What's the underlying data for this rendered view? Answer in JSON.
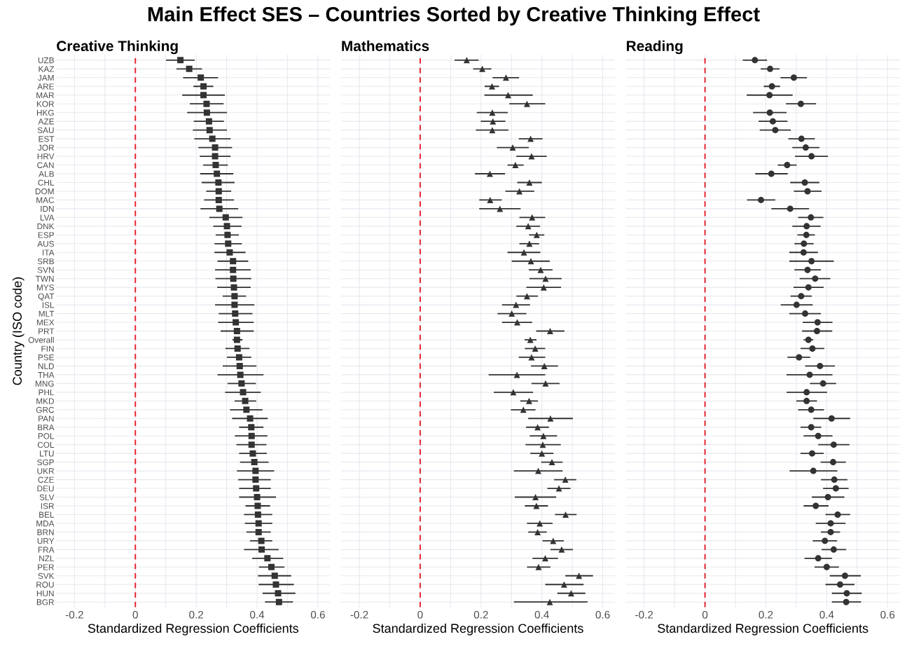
{
  "chart_data": [
    {
      "type": "scatter",
      "orientation": "horizontal",
      "title": "Main Effect SES – Countries Sorted by Creative Thinking Effect",
      "subtitle": "Creative Thinking",
      "xlabel": "Standardized Regression Coefficients",
      "ylabel": "Country (ISO code)",
      "marker": "square",
      "grid": true,
      "xlim": [
        -0.26,
        0.64
      ],
      "xticks": [
        -0.2,
        {
          "value": -0.1,
          "label": null
        },
        0,
        {
          "value": 0.1,
          "label": null
        },
        0.2,
        {
          "value": 0.3,
          "label": null
        },
        0.4,
        {
          "value": 0.5,
          "label": null
        },
        0.6
      ],
      "ref_lines": [
        {
          "axis": "x",
          "value": 0,
          "color": "#e8202a",
          "line_style": "dashed"
        }
      ],
      "categories": [
        "UZB",
        "KAZ",
        "JAM",
        "ARE",
        "MAR",
        "KOR",
        "HKG",
        "AZE",
        "SAU",
        "EST",
        "JOR",
        "HRV",
        "CAN",
        "ALB",
        "CHL",
        "DOM",
        "MAC",
        "IDN",
        "LVA",
        "DNK",
        "ESP",
        "AUS",
        "ITA",
        "SRB",
        "SVN",
        "TWN",
        "MYS",
        "QAT",
        "ISL",
        "MLT",
        "MEX",
        "PRT",
        "Overall",
        "FIN",
        "PSE",
        "NLD",
        "THA",
        "MNG",
        "PHL",
        "MKD",
        "GRC",
        "PAN",
        "BRA",
        "POL",
        "COL",
        "LTU",
        "SGP",
        "UKR",
        "CZE",
        "DEU",
        "SLV",
        "ISR",
        "BEL",
        "MDA",
        "BRN",
        "URY",
        "FRA",
        "NZL",
        "PER",
        "SVK",
        "ROU",
        "HUN",
        "BGR"
      ],
      "series": [
        {
          "color": "#333333",
          "values": [
            0.148,
            0.177,
            0.215,
            0.224,
            0.224,
            0.234,
            0.235,
            0.242,
            0.244,
            0.253,
            0.262,
            0.262,
            0.264,
            0.268,
            0.273,
            0.274,
            0.274,
            0.276,
            0.297,
            0.301,
            0.303,
            0.305,
            0.31,
            0.321,
            0.321,
            0.322,
            0.324,
            0.326,
            0.326,
            0.328,
            0.33,
            0.334,
            0.334,
            0.336,
            0.341,
            0.343,
            0.345,
            0.349,
            0.354,
            0.361,
            0.365,
            0.377,
            0.381,
            0.382,
            0.382,
            0.386,
            0.391,
            0.395,
            0.395,
            0.397,
            0.4,
            0.402,
            0.403,
            0.405,
            0.405,
            0.414,
            0.415,
            0.434,
            0.447,
            0.458,
            0.462,
            0.469,
            0.472
          ],
          "errors": [
            [
              0.101,
              0.195
            ],
            [
              0.135,
              0.219
            ],
            [
              0.157,
              0.272
            ],
            [
              0.191,
              0.256
            ],
            [
              0.154,
              0.294
            ],
            [
              0.179,
              0.29
            ],
            [
              0.17,
              0.301
            ],
            [
              0.192,
              0.291
            ],
            [
              0.189,
              0.301
            ],
            [
              0.194,
              0.313
            ],
            [
              0.207,
              0.318
            ],
            [
              0.212,
              0.313
            ],
            [
              0.223,
              0.304
            ],
            [
              0.213,
              0.322
            ],
            [
              0.218,
              0.326
            ],
            [
              0.233,
              0.315
            ],
            [
              0.226,
              0.324
            ],
            [
              0.214,
              0.338
            ],
            [
              0.243,
              0.352
            ],
            [
              0.256,
              0.349
            ],
            [
              0.264,
              0.34
            ],
            [
              0.26,
              0.35
            ],
            [
              0.26,
              0.362
            ],
            [
              0.27,
              0.371
            ],
            [
              0.262,
              0.379
            ],
            [
              0.263,
              0.381
            ],
            [
              0.269,
              0.379
            ],
            [
              0.287,
              0.364
            ],
            [
              0.262,
              0.391
            ],
            [
              0.274,
              0.385
            ],
            [
              0.272,
              0.389
            ],
            [
              0.28,
              0.389
            ],
            [
              0.319,
              0.352
            ],
            [
              0.296,
              0.375
            ],
            [
              0.301,
              0.381
            ],
            [
              0.287,
              0.398
            ],
            [
              0.27,
              0.421
            ],
            [
              0.303,
              0.396
            ],
            [
              0.295,
              0.412
            ],
            [
              0.326,
              0.397
            ],
            [
              0.311,
              0.418
            ],
            [
              0.318,
              0.435
            ],
            [
              0.341,
              0.421
            ],
            [
              0.327,
              0.434
            ],
            [
              0.332,
              0.431
            ],
            [
              0.341,
              0.432
            ],
            [
              0.344,
              0.438
            ],
            [
              0.334,
              0.456
            ],
            [
              0.338,
              0.445
            ],
            [
              0.341,
              0.445
            ],
            [
              0.341,
              0.462
            ],
            [
              0.362,
              0.443
            ],
            [
              0.357,
              0.45
            ],
            [
              0.36,
              0.45
            ],
            [
              0.365,
              0.445
            ],
            [
              0.377,
              0.45
            ],
            [
              0.357,
              0.471
            ],
            [
              0.384,
              0.486
            ],
            [
              0.406,
              0.49
            ],
            [
              0.403,
              0.512
            ],
            [
              0.405,
              0.521
            ],
            [
              0.418,
              0.526
            ],
            [
              0.426,
              0.518
            ]
          ]
        }
      ]
    },
    {
      "type": "scatter",
      "orientation": "horizontal",
      "subtitle": "Mathematics",
      "xlabel": "Standardized Regression Coefficients",
      "marker": "triangle",
      "grid": true,
      "xlim": [
        -0.26,
        0.64
      ],
      "xticks": [
        -0.2,
        {
          "value": -0.1,
          "label": null
        },
        0,
        {
          "value": 0.1,
          "label": null
        },
        0.2,
        {
          "value": 0.3,
          "label": null
        },
        0.4,
        {
          "value": 0.5,
          "label": null
        },
        0.6
      ],
      "ref_lines": [
        {
          "axis": "x",
          "value": 0,
          "color": "#e8202a",
          "line_style": "dashed"
        }
      ],
      "categories": [
        null,
        null,
        null,
        null,
        null,
        null,
        null,
        null,
        null,
        null,
        null,
        null,
        null,
        null,
        null,
        null,
        null,
        null,
        null,
        null,
        null,
        null,
        null,
        null,
        null,
        null,
        null,
        null,
        null,
        null,
        null,
        null,
        null,
        null,
        null,
        null,
        null,
        null,
        null,
        null,
        null,
        null,
        null,
        null,
        null,
        null,
        null,
        null,
        null,
        null,
        null,
        null,
        null,
        null,
        null,
        null,
        null,
        null,
        null,
        null,
        null,
        null,
        null
      ],
      "series": [
        {
          "color": "#333333",
          "values": [
            0.153,
            0.204,
            0.282,
            0.236,
            0.289,
            0.351,
            0.237,
            0.239,
            0.237,
            0.363,
            0.304,
            0.366,
            0.313,
            0.229,
            0.359,
            0.326,
            0.23,
            0.262,
            0.368,
            0.355,
            0.383,
            0.359,
            0.341,
            0.364,
            0.396,
            0.412,
            0.406,
            0.351,
            0.315,
            0.301,
            0.319,
            0.427,
            0.362,
            0.378,
            0.366,
            0.408,
            0.318,
            0.412,
            0.306,
            0.358,
            0.339,
            0.428,
            0.386,
            0.405,
            0.403,
            0.4,
            0.433,
            0.388,
            0.477,
            0.456,
            0.379,
            0.382,
            0.478,
            0.393,
            0.386,
            0.437,
            0.465,
            0.411,
            0.389,
            0.522,
            0.473,
            0.496,
            0.426
          ],
          "errors": [
            [
              0.113,
              0.192
            ],
            [
              0.174,
              0.234
            ],
            [
              0.238,
              0.325
            ],
            [
              0.212,
              0.259
            ],
            [
              0.211,
              0.37
            ],
            [
              0.293,
              0.411
            ],
            [
              0.186,
              0.288
            ],
            [
              0.199,
              0.28
            ],
            [
              0.183,
              0.29
            ],
            [
              0.324,
              0.402
            ],
            [
              0.252,
              0.357
            ],
            [
              0.316,
              0.416
            ],
            [
              0.287,
              0.34
            ],
            [
              0.18,
              0.279
            ],
            [
              0.319,
              0.4
            ],
            [
              0.28,
              0.375
            ],
            [
              0.194,
              0.268
            ],
            [
              0.194,
              0.33
            ],
            [
              0.326,
              0.411
            ],
            [
              0.316,
              0.394
            ],
            [
              0.358,
              0.408
            ],
            [
              0.326,
              0.391
            ],
            [
              0.287,
              0.395
            ],
            [
              0.301,
              0.426
            ],
            [
              0.357,
              0.435
            ],
            [
              0.359,
              0.465
            ],
            [
              0.349,
              0.463
            ],
            [
              0.316,
              0.387
            ],
            [
              0.269,
              0.361
            ],
            [
              0.254,
              0.349
            ],
            [
              0.269,
              0.368
            ],
            [
              0.381,
              0.474
            ],
            [
              0.343,
              0.382
            ],
            [
              0.344,
              0.411
            ],
            [
              0.324,
              0.411
            ],
            [
              0.364,
              0.453
            ],
            [
              0.225,
              0.411
            ],
            [
              0.366,
              0.458
            ],
            [
              0.242,
              0.371
            ],
            [
              0.329,
              0.387
            ],
            [
              0.298,
              0.379
            ],
            [
              0.355,
              0.502
            ],
            [
              0.348,
              0.423
            ],
            [
              0.36,
              0.45
            ],
            [
              0.346,
              0.462
            ],
            [
              0.362,
              0.438
            ],
            [
              0.398,
              0.468
            ],
            [
              0.308,
              0.468
            ],
            [
              0.44,
              0.513
            ],
            [
              0.418,
              0.494
            ],
            [
              0.311,
              0.447
            ],
            [
              0.344,
              0.42
            ],
            [
              0.443,
              0.514
            ],
            [
              0.351,
              0.435
            ],
            [
              0.355,
              0.416
            ],
            [
              0.402,
              0.472
            ],
            [
              0.428,
              0.502
            ],
            [
              0.369,
              0.453
            ],
            [
              0.351,
              0.428
            ],
            [
              0.477,
              0.568
            ],
            [
              0.411,
              0.537
            ],
            [
              0.451,
              0.543
            ],
            [
              0.308,
              0.55
            ]
          ]
        }
      ]
    },
    {
      "type": "scatter",
      "orientation": "horizontal",
      "subtitle": "Reading",
      "xlabel": "Standardized Regression Coefficients",
      "marker": "circle",
      "grid": true,
      "xlim": [
        -0.26,
        0.64
      ],
      "xticks": [
        -0.2,
        {
          "value": -0.1,
          "label": null
        },
        0,
        {
          "value": 0.1,
          "label": null
        },
        0.2,
        {
          "value": 0.3,
          "label": null
        },
        0.4,
        {
          "value": 0.5,
          "label": null
        },
        0.6
      ],
      "ref_lines": [
        {
          "axis": "x",
          "value": 0,
          "color": "#e8202a",
          "line_style": "dashed"
        }
      ],
      "categories": [
        null,
        null,
        null,
        null,
        null,
        null,
        null,
        null,
        null,
        null,
        null,
        null,
        null,
        null,
        null,
        null,
        null,
        null,
        null,
        null,
        null,
        null,
        null,
        null,
        null,
        null,
        null,
        null,
        null,
        null,
        null,
        null,
        null,
        null,
        null,
        null,
        null,
        null,
        null,
        null,
        null,
        null,
        null,
        null,
        null,
        null,
        null,
        null,
        null,
        null,
        null,
        null,
        null,
        null,
        null,
        null,
        null,
        null,
        null,
        null,
        null,
        null,
        null
      ],
      "series": [
        {
          "color": "#333333",
          "values": [
            0.164,
            0.214,
            0.292,
            0.22,
            0.212,
            0.315,
            0.213,
            0.223,
            0.231,
            0.317,
            0.331,
            0.35,
            0.27,
            0.218,
            0.328,
            0.337,
            0.184,
            0.28,
            0.348,
            0.334,
            0.333,
            0.325,
            0.324,
            0.35,
            0.337,
            0.362,
            0.34,
            0.316,
            0.301,
            0.329,
            0.37,
            0.368,
            0.34,
            0.353,
            0.309,
            0.378,
            0.344,
            0.388,
            0.334,
            0.334,
            0.349,
            0.416,
            0.349,
            0.372,
            0.423,
            0.352,
            0.421,
            0.356,
            0.425,
            0.43,
            0.404,
            0.364,
            0.436,
            0.413,
            0.413,
            0.394,
            0.423,
            0.372,
            0.4,
            0.46,
            0.444,
            0.466,
            0.464
          ],
          "errors": [
            [
              0.124,
              0.204
            ],
            [
              0.183,
              0.245
            ],
            [
              0.248,
              0.335
            ],
            [
              0.193,
              0.247
            ],
            [
              0.137,
              0.288
            ],
            [
              0.266,
              0.365
            ],
            [
              0.158,
              0.268
            ],
            [
              0.176,
              0.271
            ],
            [
              0.18,
              0.282
            ],
            [
              0.274,
              0.361
            ],
            [
              0.287,
              0.376
            ],
            [
              0.296,
              0.404
            ],
            [
              0.239,
              0.301
            ],
            [
              0.165,
              0.272
            ],
            [
              0.28,
              0.376
            ],
            [
              0.292,
              0.383
            ],
            [
              0.138,
              0.231
            ],
            [
              0.218,
              0.342
            ],
            [
              0.306,
              0.389
            ],
            [
              0.287,
              0.38
            ],
            [
              0.304,
              0.361
            ],
            [
              0.294,
              0.357
            ],
            [
              0.277,
              0.371
            ],
            [
              0.277,
              0.423
            ],
            [
              0.294,
              0.381
            ],
            [
              0.311,
              0.412
            ],
            [
              0.291,
              0.39
            ],
            [
              0.281,
              0.351
            ],
            [
              0.249,
              0.354
            ],
            [
              0.277,
              0.381
            ],
            [
              0.321,
              0.419
            ],
            [
              0.319,
              0.418
            ],
            [
              0.324,
              0.356
            ],
            [
              0.314,
              0.392
            ],
            [
              0.271,
              0.346
            ],
            [
              0.329,
              0.427
            ],
            [
              0.268,
              0.419
            ],
            [
              0.345,
              0.431
            ],
            [
              0.268,
              0.401
            ],
            [
              0.3,
              0.368
            ],
            [
              0.306,
              0.391
            ],
            [
              0.356,
              0.477
            ],
            [
              0.314,
              0.382
            ],
            [
              0.324,
              0.419
            ],
            [
              0.372,
              0.475
            ],
            [
              0.314,
              0.39
            ],
            [
              0.38,
              0.463
            ],
            [
              0.278,
              0.435
            ],
            [
              0.381,
              0.468
            ],
            [
              0.388,
              0.472
            ],
            [
              0.351,
              0.458
            ],
            [
              0.324,
              0.406
            ],
            [
              0.396,
              0.477
            ],
            [
              0.364,
              0.462
            ],
            [
              0.381,
              0.444
            ],
            [
              0.354,
              0.434
            ],
            [
              0.383,
              0.464
            ],
            [
              0.327,
              0.417
            ],
            [
              0.36,
              0.44
            ],
            [
              0.41,
              0.512
            ],
            [
              0.396,
              0.491
            ],
            [
              0.417,
              0.515
            ],
            [
              0.417,
              0.513
            ]
          ]
        }
      ]
    }
  ]
}
